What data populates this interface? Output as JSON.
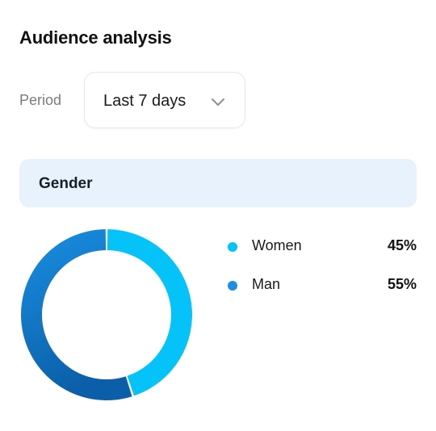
{
  "header": {
    "title": "Audience analysis"
  },
  "filters": {
    "period_label": "Period",
    "period_value": "Last 7 days"
  },
  "section": {
    "title": "Gender"
  },
  "colors": {
    "women": "#05c3f9",
    "man": "#1a8fe3",
    "man_dark": "#0b5fa8"
  },
  "chart_data": {
    "type": "pie",
    "categories": [
      "Women",
      "Man"
    ],
    "values": [
      45,
      55
    ],
    "labels": [
      "45%",
      "55%"
    ]
  },
  "legend": {
    "items": [
      {
        "name": "Women",
        "value": "45%"
      },
      {
        "name": "Man",
        "value": "55%"
      }
    ]
  }
}
